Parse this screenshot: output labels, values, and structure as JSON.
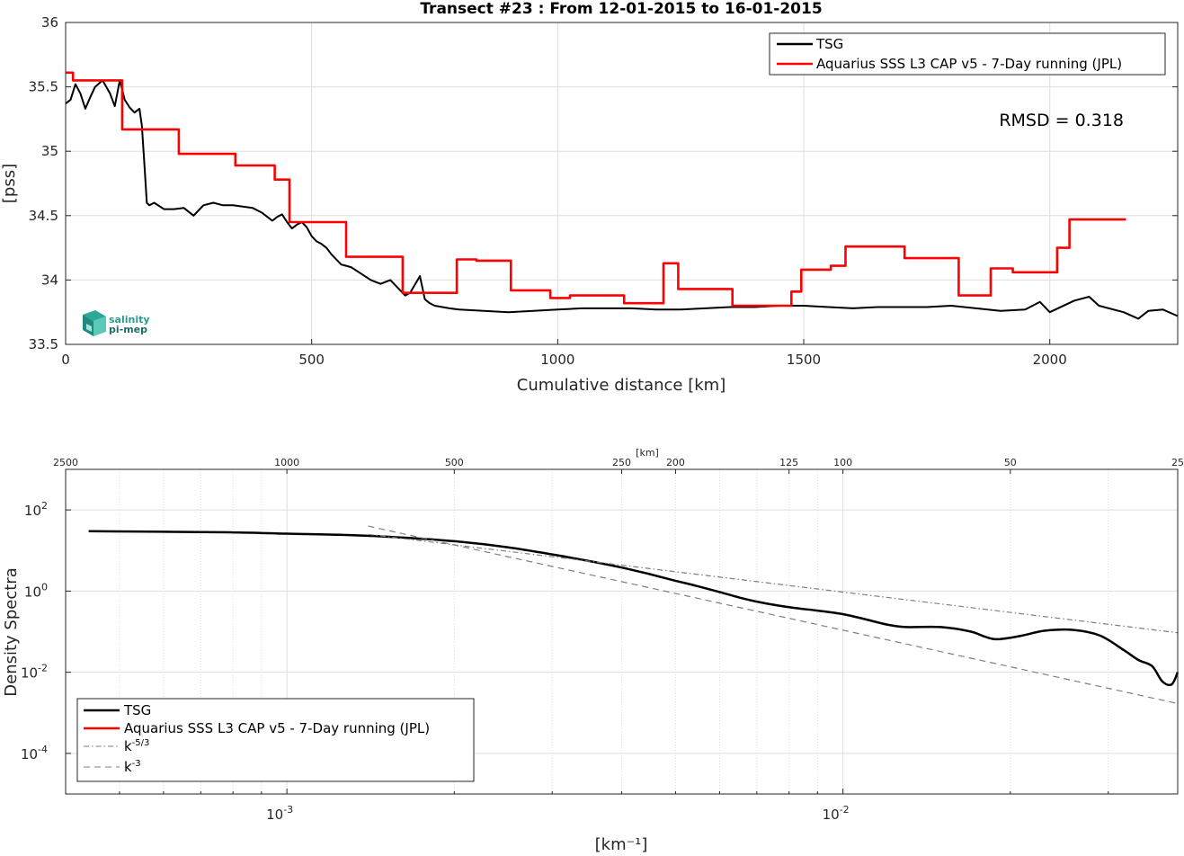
{
  "chart_data": [
    {
      "type": "line",
      "title": "Transect #23 : From 12-01-2015 to 16-01-2015",
      "xlabel": "Cumulative distance [km]",
      "ylabel": "[pss]",
      "xlim": [
        0,
        2260
      ],
      "ylim": [
        33.5,
        36
      ],
      "xticks": [
        0,
        500,
        1000,
        1500,
        2000
      ],
      "yticks": [
        33.5,
        34,
        34.5,
        35,
        35.5,
        36
      ],
      "grid": true,
      "legend_position": "top-right",
      "annotation": "RMSD = 0.318",
      "logo": "salinity pi-mep",
      "series": [
        {
          "name": "TSG",
          "color": "#000000",
          "x": [
            0,
            10,
            20,
            30,
            40,
            50,
            60,
            75,
            90,
            100,
            110,
            120,
            130,
            140,
            150,
            155,
            160,
            165,
            170,
            180,
            200,
            220,
            240,
            260,
            280,
            300,
            320,
            340,
            360,
            380,
            400,
            420,
            430,
            440,
            450,
            460,
            470,
            480,
            490,
            500,
            510,
            520,
            530,
            540,
            560,
            580,
            600,
            620,
            640,
            660,
            680,
            690,
            700,
            720,
            730,
            740,
            750,
            780,
            800,
            850,
            900,
            950,
            1000,
            1050,
            1100,
            1150,
            1200,
            1250,
            1300,
            1350,
            1400,
            1450,
            1500,
            1550,
            1600,
            1650,
            1700,
            1750,
            1800,
            1850,
            1900,
            1950,
            1980,
            2000,
            2050,
            2080,
            2100,
            2150,
            2180,
            2200,
            2230,
            2260
          ],
          "y": [
            35.37,
            35.4,
            35.52,
            35.45,
            35.33,
            35.42,
            35.5,
            35.55,
            35.45,
            35.35,
            35.55,
            35.4,
            35.34,
            35.3,
            35.33,
            35.2,
            34.9,
            34.6,
            34.58,
            34.6,
            34.55,
            34.55,
            34.56,
            34.5,
            34.58,
            34.6,
            34.58,
            34.58,
            34.57,
            34.56,
            34.52,
            34.46,
            34.49,
            34.51,
            34.45,
            34.4,
            34.43,
            34.45,
            34.41,
            34.34,
            34.3,
            34.28,
            34.25,
            34.2,
            34.12,
            34.1,
            34.05,
            34.0,
            33.97,
            34.0,
            33.92,
            33.88,
            33.9,
            34.03,
            33.85,
            33.82,
            33.8,
            33.78,
            33.77,
            33.76,
            33.75,
            33.76,
            33.77,
            33.78,
            33.78,
            33.78,
            33.77,
            33.77,
            33.78,
            33.79,
            33.79,
            33.8,
            33.8,
            33.79,
            33.78,
            33.79,
            33.79,
            33.79,
            33.8,
            33.78,
            33.76,
            33.77,
            33.83,
            33.75,
            33.84,
            33.87,
            33.8,
            33.75,
            33.7,
            33.76,
            33.77,
            33.72
          ]
        },
        {
          "name": "Aquarius SSS L3 CAP v5 - 7-Day running (JPL)",
          "color": "#ff0000",
          "step": true,
          "x": [
            0,
            15,
            115,
            230,
            345,
            425,
            455,
            570,
            685,
            795,
            835,
            905,
            985,
            1025,
            1135,
            1215,
            1245,
            1355,
            1475,
            1495,
            1555,
            1585,
            1705,
            1815,
            1880,
            1925,
            2015,
            2040,
            2155
          ],
          "y": [
            35.61,
            35.55,
            35.17,
            34.98,
            34.89,
            34.78,
            34.45,
            34.18,
            33.9,
            34.16,
            34.15,
            33.92,
            33.86,
            33.88,
            33.82,
            34.13,
            33.93,
            33.8,
            33.91,
            34.08,
            34.11,
            34.26,
            34.17,
            33.88,
            34.09,
            34.06,
            34.25,
            34.47,
            34.47
          ]
        }
      ]
    },
    {
      "type": "line",
      "xlabel": "[km⁻¹]",
      "ylabel": "Density Spectra",
      "x_scale": "log",
      "y_scale": "log",
      "xlim": [
        0.0004,
        0.04
      ],
      "ylim": [
        1e-05,
        1000
      ],
      "xticks": [
        {
          "value": 0.001,
          "label": "10",
          "exp": "-3"
        },
        {
          "value": 0.01,
          "label": "10",
          "exp": "-2"
        }
      ],
      "yticks": [
        {
          "value": 100,
          "label": "10",
          "exp": "2"
        },
        {
          "value": 1,
          "label": "10",
          "exp": "0"
        },
        {
          "value": 0.01,
          "label": "10",
          "exp": "-2"
        },
        {
          "value": 0.0001,
          "label": "10",
          "exp": "-4"
        }
      ],
      "top_axis_label": "[km]",
      "top_axis_ticks": [
        {
          "km": 2500,
          "label": "2500"
        },
        {
          "km": 1000,
          "label": "1000"
        },
        {
          "km": 500,
          "label": "500"
        },
        {
          "km": 250,
          "label": "250"
        },
        {
          "km": 200,
          "label": "200"
        },
        {
          "km": 125,
          "label": "125"
        },
        {
          "km": 100,
          "label": "100"
        },
        {
          "km": 50,
          "label": "50"
        },
        {
          "km": 25,
          "label": "25"
        }
      ],
      "grid": true,
      "legend_position": "bottom-left",
      "series": [
        {
          "name": "TSG",
          "color": "#000000",
          "x": [
            0.00044,
            0.0006,
            0.0008,
            0.001,
            0.0013,
            0.0016,
            0.002,
            0.0025,
            0.003,
            0.0035,
            0.004,
            0.0045,
            0.005,
            0.0055,
            0.006,
            0.0065,
            0.007,
            0.008,
            0.009,
            0.01,
            0.011,
            0.012,
            0.013,
            0.015,
            0.017,
            0.018,
            0.019,
            0.021,
            0.023,
            0.026,
            0.029,
            0.032,
            0.034,
            0.036,
            0.0375,
            0.039,
            0.04
          ],
          "y": [
            30,
            29,
            28,
            26,
            24,
            21,
            17,
            12,
            8,
            5.5,
            3.8,
            2.6,
            1.8,
            1.3,
            0.95,
            0.7,
            0.55,
            0.4,
            0.33,
            0.27,
            0.2,
            0.15,
            0.13,
            0.13,
            0.1,
            0.075,
            0.065,
            0.08,
            0.105,
            0.11,
            0.08,
            0.035,
            0.02,
            0.014,
            0.006,
            0.005,
            0.01
          ]
        },
        {
          "name": "Aquarius SSS L3 CAP v5 - 7-Day running (JPL)",
          "color": "#ff0000",
          "x": [],
          "y": []
        },
        {
          "name": "k^-5/3",
          "legend_label": "k",
          "legend_exp": "-5/3",
          "color": "#7f7f7f",
          "dash": "dashdot",
          "x": [
            0.0014,
            0.04
          ],
          "y": [
            25,
            0.094
          ]
        },
        {
          "name": "k^-3",
          "legend_label": "k",
          "legend_exp": "-3",
          "color": "#7f7f7f",
          "dash": "dashed",
          "x": [
            0.0014,
            0.04
          ],
          "y": [
            40,
            0.0017
          ]
        }
      ]
    }
  ]
}
